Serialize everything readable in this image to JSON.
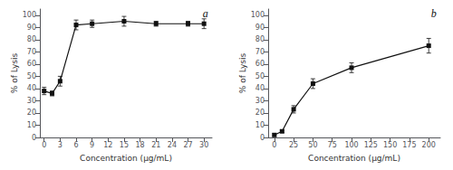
{
  "chart_data": [
    {
      "type": "line",
      "x": [
        0,
        1.5,
        3,
        6,
        9,
        15,
        21,
        27,
        30
      ],
      "values": [
        38,
        36,
        46,
        92,
        93,
        95,
        93,
        93,
        93
      ],
      "errors": [
        3,
        2,
        4,
        4,
        3,
        4,
        2,
        2,
        4
      ],
      "xlabel": "Concentration (μg/mL)",
      "ylabel": "% of Lysis",
      "annotation": "a",
      "xlim": [
        -0.8,
        31.5
      ],
      "xticks": [
        0,
        3,
        6,
        9,
        12,
        15,
        18,
        21,
        24,
        27,
        30
      ],
      "ylim": [
        0,
        105
      ],
      "yticks": [
        0,
        10,
        20,
        30,
        40,
        50,
        60,
        70,
        80,
        90,
        100
      ],
      "color": "#111111",
      "marker": "square",
      "grid": false
    },
    {
      "type": "line",
      "x": [
        0,
        10,
        25,
        50,
        100,
        200
      ],
      "values": [
        2,
        5,
        23,
        44,
        57,
        75
      ],
      "errors": [
        1,
        1,
        3,
        4,
        4,
        6
      ],
      "xlabel": "Concentration (μg/mL)",
      "ylabel": "% of Lysis",
      "annotation": "b",
      "xlim": [
        -8,
        215
      ],
      "xticks": [
        0,
        25,
        50,
        75,
        100,
        125,
        150,
        175,
        200
      ],
      "ylim": [
        0,
        105
      ],
      "yticks": [
        0,
        10,
        20,
        30,
        40,
        50,
        60,
        70,
        80,
        90,
        100
      ],
      "color": "#111111",
      "marker": "square",
      "grid": false
    }
  ]
}
